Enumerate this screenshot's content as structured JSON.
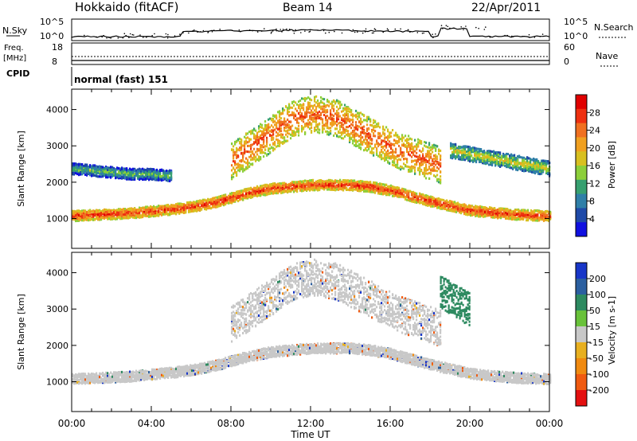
{
  "header": {
    "title": "Hokkaido (fitACF)",
    "beam": "Beam 14",
    "date": "22/Apr/2011"
  },
  "nsky_panel": {
    "left_label": "N.Sky",
    "right_label": "N.Search",
    "left_ticks": [
      "10^5",
      "10^0"
    ],
    "right_ticks": [
      "10^5",
      "10^0"
    ]
  },
  "freq_panel": {
    "left_label_1": "Freq.",
    "left_label_2": "[MHz]",
    "right_label": "Nave",
    "left_ticks": [
      "18",
      "8"
    ],
    "right_ticks": [
      "60",
      "0"
    ]
  },
  "cpid_panel": {
    "label": "CPID",
    "text": "normal (fast) 151"
  },
  "xaxis": {
    "label": "Time UT",
    "ticks": [
      "00:00",
      "04:00",
      "08:00",
      "12:00",
      "16:00",
      "20:00",
      "00:00"
    ]
  },
  "power_panel": {
    "ylabel": "Slant Range [km]",
    "yticks": [
      "1000",
      "2000",
      "3000",
      "4000"
    ],
    "colorbar_label": "Power [dB]",
    "colorbar_ticks": [
      "4",
      "8",
      "12",
      "16",
      "20",
      "24",
      "28"
    ],
    "colors": [
      "#1010e0",
      "#1f4aa8",
      "#2f7fa8",
      "#37a070",
      "#8ccf3a",
      "#d8c020",
      "#f0a020",
      "#f07020",
      "#ee3010",
      "#e00000"
    ]
  },
  "velocity_panel": {
    "ylabel": "Slant Range [km]",
    "yticks": [
      "1000",
      "2000",
      "3000",
      "4000"
    ],
    "colorbar_label": "Velocity [m s-1]",
    "colorbar_ticks": [
      "200",
      "100",
      "50",
      "15",
      "-15",
      "-50",
      "-100",
      "-200"
    ],
    "colors": [
      "#1836c8",
      "#2b5fa0",
      "#2d8a60",
      "#69c23a",
      "#c8c8c8",
      "#e8b020",
      "#f08a10",
      "#f05a10",
      "#e41010"
    ]
  },
  "chart_data": [
    {
      "type": "heatmap",
      "title": "Power",
      "xlabel": "Time UT",
      "ylabel": "Slant Range [km]",
      "xlim": [
        0,
        24
      ],
      "ylim": [
        180,
        4560
      ],
      "colorbar": {
        "label": "Power [dB]",
        "range": [
          0,
          32
        ]
      },
      "regions": [
        {
          "t0": 0,
          "t1": 24,
          "r_center": [
            1100,
            1130,
            1150,
            1180,
            1230,
            1280,
            1350,
            1450,
            1600,
            1750,
            1850,
            1900,
            1950,
            1950,
            1950,
            1900,
            1800,
            1650,
            1500,
            1380,
            1250,
            1200,
            1150,
            1120,
            1100
          ],
          "width": 280,
          "power": 24
        },
        {
          "t0": 8,
          "t1": 18.5,
          "r_center": [
            2600,
            3000,
            3400,
            3800,
            3900,
            3800,
            3500,
            3200,
            2900,
            2700,
            2500
          ],
          "width": 1000,
          "power": 22
        },
        {
          "t0": 0,
          "t1": 5,
          "r_center": [
            2400,
            2350,
            2300,
            2250,
            2250,
            2200
          ],
          "width": 300,
          "power": 10
        },
        {
          "t0": 19,
          "t1": 24,
          "r_center": [
            2900,
            2800,
            2700,
            2600,
            2500,
            2400
          ],
          "width": 400,
          "power": 14
        }
      ]
    },
    {
      "type": "heatmap",
      "title": "Velocity",
      "xlabel": "Time UT",
      "ylabel": "Slant Range [km]",
      "xlim": [
        0,
        24
      ],
      "ylim": [
        180,
        4560
      ],
      "colorbar": {
        "label": "Velocity [m s-1]",
        "range": [
          -200,
          200
        ]
      },
      "regions": [
        {
          "t0": 0,
          "t1": 24,
          "r_center": [
            1100,
            1130,
            1150,
            1180,
            1230,
            1280,
            1350,
            1450,
            1600,
            1750,
            1850,
            1900,
            1950,
            1950,
            1950,
            1900,
            1800,
            1650,
            1500,
            1380,
            1250,
            1200,
            1150,
            1120,
            1100
          ],
          "width": 280,
          "velocity": 0
        },
        {
          "t0": 8,
          "t1": 18.5,
          "r_center": [
            2600,
            3000,
            3400,
            3800,
            3900,
            3800,
            3500,
            3200,
            2900,
            2700,
            2500
          ],
          "width": 1000,
          "velocity": 0
        },
        {
          "t0": 18.5,
          "t1": 20,
          "r_center": [
            3500,
            3000
          ],
          "width": 900,
          "velocity": 60
        }
      ]
    }
  ]
}
